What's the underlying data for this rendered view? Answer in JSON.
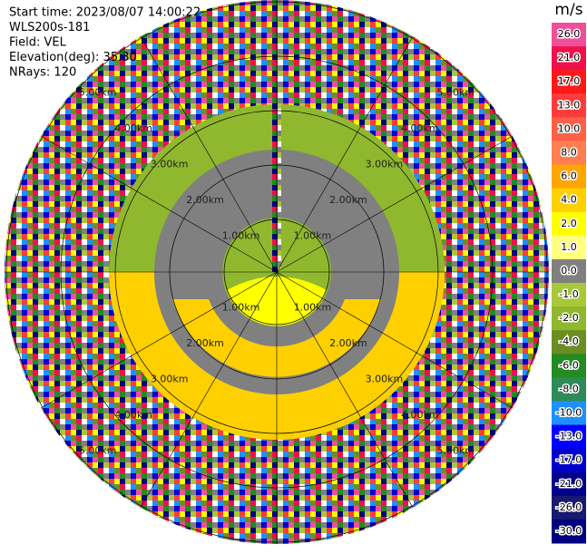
{
  "chart_data": {
    "type": "ppi",
    "header": [
      "Start time: 2023/08/07 14:00:22",
      "WLS200s-181",
      "Field: VEL",
      "Elevation(deg): 35.30",
      "NRays: 120"
    ],
    "range_rings": [
      "1.00km",
      "2.00km",
      "3.00km",
      "4.00km",
      "5.00km"
    ],
    "colorbar": {
      "unit": "m/s",
      "ticks": [
        {
          "value": 26,
          "label": "26.0"
        },
        {
          "value": 21,
          "label": "21.0"
        },
        {
          "value": 17,
          "label": "17.0"
        },
        {
          "value": 13,
          "label": "13.0"
        },
        {
          "value": 10,
          "label": "10.0"
        },
        {
          "value": 8,
          "label": "8.0"
        },
        {
          "value": 6,
          "label": "6.0"
        },
        {
          "value": 4,
          "label": "4.0"
        },
        {
          "value": 2,
          "label": "2.0"
        },
        {
          "value": 1,
          "label": "1.0"
        },
        {
          "value": 0,
          "label": "0.0"
        },
        {
          "value": -1,
          "label": "-1.0"
        },
        {
          "value": -2,
          "label": "-2.0"
        },
        {
          "value": -4,
          "label": "-4.0"
        },
        {
          "value": -6,
          "label": "-6.0"
        },
        {
          "value": -8,
          "label": "-8.0"
        },
        {
          "value": -10,
          "label": "-10.0"
        },
        {
          "value": -13,
          "label": "-13.0"
        },
        {
          "value": -17,
          "label": "-17.0"
        },
        {
          "value": -21,
          "label": "-21.0"
        },
        {
          "value": -26,
          "label": "-26.0"
        },
        {
          "value": -30,
          "label": "-30.0"
        }
      ],
      "colors": [
        "#f0509a",
        "#f0104a",
        "#ff1a1a",
        "#ff3c3c",
        "#ff6048",
        "#ff7f50",
        "#ffa500",
        "#ffd000",
        "#ffff00",
        "#ffff80",
        "#808080",
        "#a8c83a",
        "#8fb82e",
        "#6b8e23",
        "#228b22",
        "#2e8b57",
        "#1e90ff",
        "#0000ff",
        "#0000cd",
        "#00008b",
        "#191970",
        "#000080"
      ]
    }
  }
}
